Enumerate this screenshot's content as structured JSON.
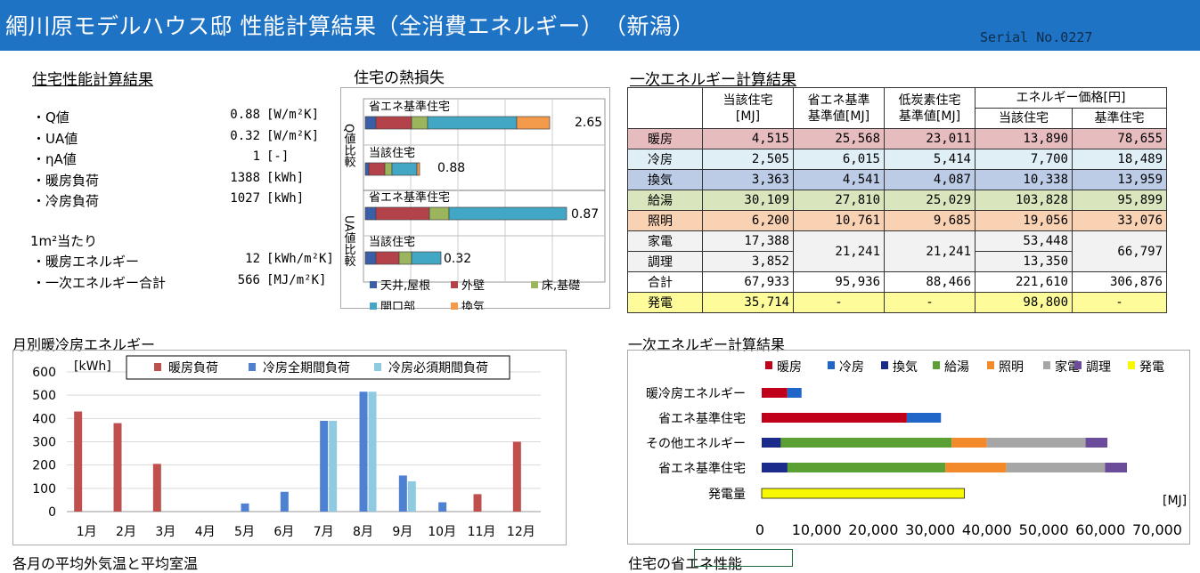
{
  "header": {
    "title": "網川原モデルハウス邸 性能計算結果（全消費エネルギー）　（新潟）",
    "serial": "Serial No.0227"
  },
  "perf": {
    "title": "住宅性能計算結果",
    "items": [
      {
        "label": "・Q値",
        "value": "0.88",
        "unit": "[W/m²K]"
      },
      {
        "label": "・UA値",
        "value": "0.32",
        "unit": "[W/m²K]"
      },
      {
        "label": "・ηA値",
        "value": "1",
        "unit": "[-]"
      },
      {
        "label": "・暖房負荷",
        "value": "1388",
        "unit": "[kWh]"
      },
      {
        "label": "・冷房負荷",
        "value": "1027",
        "unit": "[kWh]"
      }
    ],
    "per_m2": "1m²当たり",
    "items2": [
      {
        "label": "・暖房エネルギー",
        "value": "12",
        "unit": "[kWh/m²K]"
      },
      {
        "label": "・一次エネルギー合計",
        "value": "566",
        "unit": "[MJ/m²K]"
      }
    ]
  },
  "heat_loss": {
    "title": "住宅の熱損失",
    "q_axis": "Q値比較",
    "ua_axis": "UA値比較",
    "bar_labels": [
      "省エネ基準住宅",
      "当該住宅",
      "省エネ基準住宅",
      "当該住宅"
    ],
    "bar_values": [
      "2.65",
      "0.88",
      "0.87",
      "0.32"
    ],
    "legend": [
      "天井,屋根",
      "外壁",
      "床,基礎",
      "開口部",
      "換気"
    ],
    "colors": [
      "#3b5ea8",
      "#b3424a",
      "#9ab55c",
      "#42a7c4",
      "#f39b4b"
    ]
  },
  "energy": {
    "title": "一次エネルギー計算結果",
    "head": {
      "c1": "当該住宅",
      "c1u": "[MJ]",
      "c2": "省エネ基準",
      "c2u": "基準値[MJ]",
      "c3": "低炭素住宅",
      "c3u": "基準値[MJ]",
      "price": "エネルギー価格[円]",
      "p1": "当該住宅",
      "p2": "基準住宅"
    },
    "rows": [
      {
        "name": "暖房",
        "v": [
          "4,515",
          "25,568",
          "23,011",
          "13,890",
          "78,655"
        ],
        "bg": "#e7bcbf"
      },
      {
        "name": "冷房",
        "v": [
          "2,505",
          "6,015",
          "5,414",
          "7,700",
          "18,489"
        ],
        "bg": "#e0eef6"
      },
      {
        "name": "換気",
        "v": [
          "3,363",
          "4,541",
          "4,087",
          "10,338",
          "13,959"
        ],
        "bg": "#bccbe6"
      },
      {
        "name": "給湯",
        "v": [
          "30,109",
          "27,810",
          "25,029",
          "103,828",
          "95,899"
        ],
        "bg": "#d9e5bc"
      },
      {
        "name": "照明",
        "v": [
          "6,200",
          "10,761",
          "9,685",
          "19,056",
          "33,076"
        ],
        "bg": "#f9d1b3"
      }
    ],
    "kaden": {
      "name": "家電",
      "v1": "17,388",
      "v4": "53,448"
    },
    "chori": {
      "name": "調理",
      "v1": "3,852",
      "v4": "13,350"
    },
    "kc": {
      "v2": "21,241",
      "v3": "21,241",
      "v5": "66,797"
    },
    "total": {
      "name": "合計",
      "v": [
        "67,933",
        "95,936",
        "88,466",
        "221,610",
        "306,876"
      ]
    },
    "gen": {
      "name": "発電",
      "v": [
        "35,714",
        "-",
        "-",
        "98,800",
        "-"
      ]
    }
  },
  "monthly": {
    "title": "月別暖冷房エネルギー",
    "unit": "[kWh]",
    "legend": [
      "暖房負荷",
      "冷房全期間負荷",
      "冷房必須期間負荷"
    ]
  },
  "energy_chart": {
    "title": "一次エネルギー計算結果",
    "legend": [
      "暖房",
      "冷房",
      "換気",
      "給湯",
      "照明",
      "家電",
      "調理",
      "発電"
    ],
    "unit": "[MJ]"
  },
  "footer": {
    "left": "各月の平均外気温と平均室温",
    "right": "住宅の省エネ性能"
  },
  "chart_data": [
    {
      "type": "bar",
      "title": "月別暖冷房エネルギー",
      "ylabel": "[kWh]",
      "ylim": [
        0,
        600
      ],
      "categories": [
        "1月",
        "2月",
        "3月",
        "4月",
        "5月",
        "6月",
        "7月",
        "8月",
        "9月",
        "10月",
        "11月",
        "12月"
      ],
      "series": [
        {
          "name": "暖房負荷",
          "values": [
            430,
            380,
            205,
            0,
            0,
            0,
            0,
            0,
            0,
            0,
            75,
            300
          ],
          "color": "#c0504d"
        },
        {
          "name": "冷房全期間負荷",
          "values": [
            0,
            0,
            0,
            0,
            35,
            85,
            390,
            515,
            155,
            40,
            0,
            0
          ],
          "color": "#4f81d2"
        },
        {
          "name": "冷房必須期間負荷",
          "values": [
            0,
            0,
            0,
            0,
            0,
            0,
            390,
            515,
            130,
            0,
            0,
            0
          ],
          "color": "#8fcbe0"
        }
      ]
    },
    {
      "type": "bar",
      "title": "一次エネルギー計算結果",
      "xlabel": "[MJ]",
      "xlim": [
        0,
        70000
      ],
      "categories": [
        "暖冷房エネルギー",
        "省エネ基準住宅",
        "その他エネルギー",
        "省エネ基準住宅",
        "発電量"
      ],
      "series": [
        {
          "name": "暖房",
          "values": [
            4515,
            25568,
            0,
            0,
            0
          ],
          "color": "#c0001a"
        },
        {
          "name": "冷房",
          "values": [
            2505,
            6015,
            0,
            0,
            0
          ],
          "color": "#1f66c8"
        },
        {
          "name": "換気",
          "values": [
            0,
            0,
            3363,
            4541,
            0
          ],
          "color": "#1a2b8c"
        },
        {
          "name": "給湯",
          "values": [
            0,
            0,
            30109,
            27810,
            0
          ],
          "color": "#5ba033"
        },
        {
          "name": "照明",
          "values": [
            0,
            0,
            6200,
            10761,
            0
          ],
          "color": "#f28a2b"
        },
        {
          "name": "家電",
          "values": [
            0,
            0,
            17388,
            17388,
            0
          ],
          "color": "#a6a6a6"
        },
        {
          "name": "調理",
          "values": [
            0,
            0,
            3852,
            3852,
            0
          ],
          "color": "#6b4c9a"
        },
        {
          "name": "発電",
          "values": [
            0,
            0,
            0,
            0,
            35714
          ],
          "color": "#f8f800"
        }
      ]
    }
  ]
}
